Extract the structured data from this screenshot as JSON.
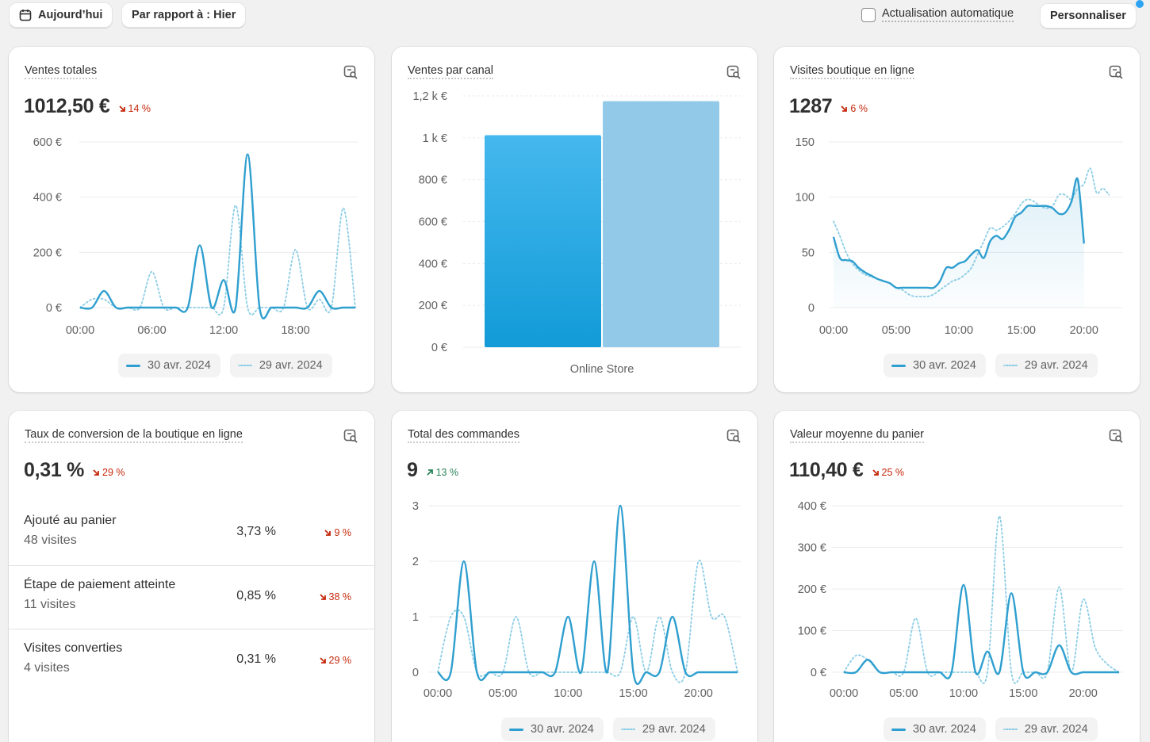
{
  "toolbar": {
    "today_label": "Aujourd’hui",
    "compare_label": "Par rapport à : Hier",
    "auto_refresh_label": "Actualisation automatique",
    "customize_label": "Personnaliser"
  },
  "legend": {
    "current": "30 avr. 2024",
    "previous": "29 avr. 2024"
  },
  "colors": {
    "current": "#2f9fcf",
    "previous": "#8ccde6",
    "bar_current": "#1f9fde",
    "bar_previous": "#93c9e8",
    "negative": "#c5280c",
    "positive": "#29845a"
  },
  "cards": {
    "total_sales": {
      "title": "Ventes totales",
      "value": "1012,50 €",
      "delta": "14 %",
      "direction": "down"
    },
    "sales_by_channel": {
      "title": "Ventes par canal"
    },
    "online_visits": {
      "title": "Visites boutique en ligne",
      "value": "1287",
      "delta": "6 %",
      "direction": "down"
    },
    "conversion": {
      "title": "Taux de conversion de la boutique en ligne",
      "value": "0,31 %",
      "delta": "29 %",
      "direction": "down",
      "rows": [
        {
          "name": "Ajouté au panier",
          "sub": "48 visites",
          "pct": "3,73 %",
          "delta": "9 %"
        },
        {
          "name": "Étape de paiement atteinte",
          "sub": "11 visites",
          "pct": "0,85 %",
          "delta": "38 %"
        },
        {
          "name": "Visites converties",
          "sub": "4 visites",
          "pct": "0,31 %",
          "delta": "29 %"
        }
      ]
    },
    "total_orders": {
      "title": "Total des commandes",
      "value": "9",
      "delta": "13 %",
      "direction": "up"
    },
    "avg_cart": {
      "title": "Valeur moyenne du panier",
      "value": "110,40 €",
      "delta": "25 %",
      "direction": "down"
    }
  },
  "chart_data": [
    {
      "id": "total_sales",
      "type": "line",
      "x_ticks": [
        "00:00",
        "06:00",
        "12:00",
        "18:00"
      ],
      "y_ticks": [
        "0 €",
        "200 €",
        "400 €",
        "600 €"
      ],
      "ylim": [
        0,
        600
      ],
      "series": [
        {
          "name": "30 avr. 2024",
          "x": [
            0,
            1,
            2,
            3,
            4,
            5,
            6,
            7,
            8,
            9,
            10,
            11,
            12,
            13,
            14,
            15,
            16,
            17,
            18,
            19,
            20,
            21,
            22,
            23
          ],
          "values": [
            0,
            0,
            60,
            0,
            0,
            0,
            0,
            0,
            0,
            0,
            225,
            0,
            100,
            0,
            555,
            0,
            0,
            0,
            0,
            0,
            60,
            0,
            0,
            0
          ]
        },
        {
          "name": "29 avr. 2024",
          "x": [
            0,
            1,
            2,
            3,
            4,
            5,
            6,
            7,
            8,
            9,
            10,
            11,
            12,
            13,
            14,
            15,
            16,
            17,
            18,
            19,
            20,
            21,
            22,
            23
          ],
          "values": [
            0,
            30,
            30,
            0,
            0,
            0,
            130,
            0,
            0,
            0,
            0,
            0,
            0,
            370,
            0,
            0,
            0,
            0,
            210,
            0,
            30,
            0,
            360,
            0
          ]
        }
      ]
    },
    {
      "id": "sales_by_channel",
      "type": "bar",
      "categories": [
        "Online Store"
      ],
      "y_ticks": [
        "0 €",
        "200 €",
        "400 €",
        "600 €",
        "800 €",
        "1 k €",
        "1,2 k €"
      ],
      "ylim": [
        0,
        1200
      ],
      "series": [
        {
          "name": "30 avr. 2024",
          "values": [
            1012.5
          ]
        },
        {
          "name": "29 avr. 2024",
          "values": [
            1175
          ]
        }
      ]
    },
    {
      "id": "online_visits",
      "type": "area",
      "x_ticks": [
        "00:00",
        "05:00",
        "10:00",
        "15:00",
        "20:00"
      ],
      "y_ticks": [
        "0",
        "50",
        "100",
        "150"
      ],
      "ylim": [
        0,
        150
      ],
      "series": [
        {
          "name": "30 avr. 2024",
          "x": [
            0,
            0.5,
            1,
            1.5,
            2,
            2.5,
            3,
            3.5,
            4,
            4.5,
            5,
            5.5,
            6,
            6.5,
            7,
            7.5,
            8,
            8.5,
            9,
            9.5,
            10,
            10.5,
            11,
            11.5,
            12,
            12.5,
            13,
            13.5,
            14,
            14.5,
            15,
            15.5,
            16,
            16.5,
            17,
            17.5,
            18,
            18.5,
            19,
            19.5,
            20
          ],
          "values": [
            64,
            45,
            43,
            42,
            36,
            32,
            29,
            26,
            24,
            22,
            18,
            18,
            18,
            18,
            18,
            18,
            18,
            24,
            36,
            36,
            40,
            42,
            48,
            52,
            45,
            60,
            65,
            62,
            70,
            82,
            86,
            92,
            92,
            92,
            92,
            90,
            85,
            86,
            96,
            116,
            58
          ]
        },
        {
          "name": "29 avr. 2024",
          "x": [
            0,
            0.5,
            1,
            1.5,
            2,
            2.5,
            3,
            3.5,
            4,
            4.5,
            5,
            5.5,
            6,
            6.5,
            7,
            7.5,
            8,
            8.5,
            9,
            9.5,
            10,
            10.5,
            11,
            11.5,
            12,
            12.5,
            13,
            13.5,
            14,
            14.5,
            15,
            15.5,
            16,
            16.5,
            17,
            17.5,
            18,
            18.5,
            19,
            19.5,
            20,
            20.5,
            21,
            21.5,
            22
          ],
          "values": [
            78,
            65,
            50,
            40,
            34,
            30,
            28,
            26,
            24,
            22,
            18,
            16,
            12,
            10,
            10,
            10,
            12,
            16,
            20,
            24,
            26,
            30,
            36,
            48,
            60,
            72,
            70,
            73,
            78,
            85,
            94,
            98,
            96,
            92,
            90,
            92,
            102,
            102,
            98,
            108,
            112,
            126,
            104,
            108,
            102
          ]
        }
      ]
    },
    {
      "id": "total_orders",
      "type": "line",
      "x_ticks": [
        "00:00",
        "05:00",
        "10:00",
        "15:00",
        "20:00"
      ],
      "y_ticks": [
        "0",
        "1",
        "2",
        "3"
      ],
      "ylim": [
        0,
        3
      ],
      "series": [
        {
          "name": "30 avr. 2024",
          "x": [
            0,
            1,
            2,
            3,
            4,
            5,
            6,
            7,
            8,
            9,
            10,
            11,
            12,
            13,
            14,
            15,
            16,
            17,
            18,
            19,
            20,
            21,
            22,
            23
          ],
          "values": [
            0,
            0,
            2,
            0,
            0,
            0,
            0,
            0,
            0,
            0,
            1,
            0,
            2,
            0,
            3,
            0,
            0,
            0,
            1,
            0,
            0,
            0,
            0,
            0
          ]
        },
        {
          "name": "29 avr. 2024",
          "x": [
            0,
            1,
            2,
            3,
            4,
            5,
            6,
            7,
            8,
            9,
            10,
            11,
            12,
            13,
            14,
            15,
            16,
            17,
            18,
            19,
            20,
            21,
            22,
            23
          ],
          "values": [
            0,
            1,
            1,
            0,
            0,
            0,
            1,
            0,
            0,
            0,
            0,
            0,
            0,
            0,
            0,
            1,
            0,
            1,
            0,
            0,
            2,
            1,
            1,
            0
          ]
        }
      ]
    },
    {
      "id": "avg_cart",
      "type": "line",
      "x_ticks": [
        "00:00",
        "05:00",
        "10:00",
        "15:00",
        "20:00"
      ],
      "y_ticks": [
        "0 €",
        "100 €",
        "200 €",
        "300 €",
        "400 €"
      ],
      "ylim": [
        0,
        400
      ],
      "series": [
        {
          "name": "30 avr. 2024",
          "x": [
            0,
            1,
            2,
            3,
            4,
            5,
            6,
            7,
            8,
            9,
            10,
            11,
            12,
            13,
            14,
            15,
            16,
            17,
            18,
            19,
            20,
            21,
            22,
            23
          ],
          "values": [
            0,
            0,
            30,
            0,
            0,
            0,
            0,
            0,
            0,
            0,
            210,
            0,
            50,
            0,
            190,
            0,
            0,
            0,
            65,
            0,
            0,
            0,
            0,
            0
          ]
        },
        {
          "name": "29 avr. 2024",
          "x": [
            0,
            1,
            2,
            3,
            4,
            5,
            6,
            7,
            8,
            9,
            10,
            11,
            12,
            13,
            14,
            15,
            16,
            17,
            18,
            19,
            20,
            21,
            22,
            23
          ],
          "values": [
            0,
            40,
            30,
            0,
            0,
            0,
            130,
            0,
            0,
            0,
            0,
            0,
            0,
            375,
            0,
            0,
            0,
            0,
            205,
            0,
            175,
            60,
            20,
            0
          ]
        }
      ]
    }
  ]
}
